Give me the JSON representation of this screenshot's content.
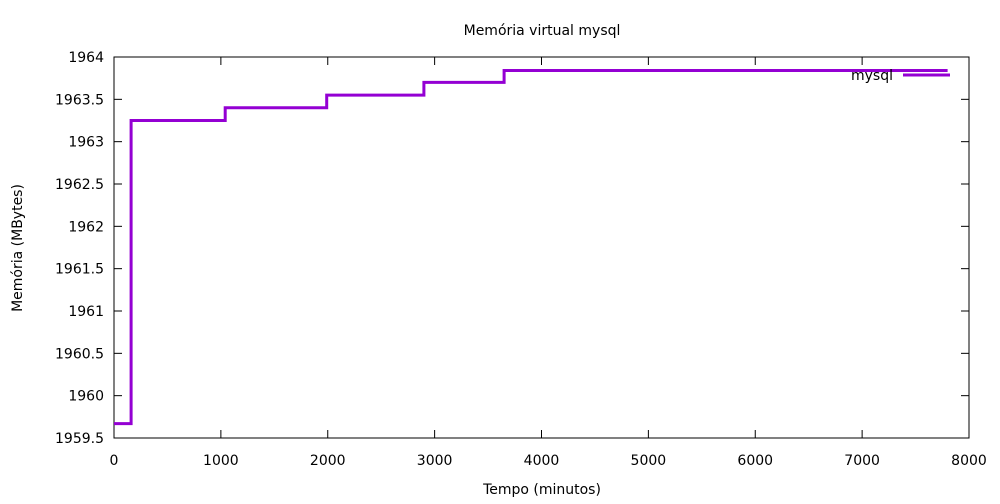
{
  "chart_data": {
    "type": "line",
    "step": true,
    "title": "Memória virtual mysql",
    "xlabel": "Tempo (minutos)",
    "ylabel": "Memória (MBytes)",
    "xlim": [
      0,
      8000
    ],
    "ylim": [
      1959.5,
      1964
    ],
    "x_ticks": [
      0,
      1000,
      2000,
      3000,
      4000,
      5000,
      6000,
      7000,
      8000
    ],
    "y_ticks": [
      1959.5,
      1960,
      1960.5,
      1961,
      1961.5,
      1962,
      1962.5,
      1963,
      1963.5,
      1964
    ],
    "x_tick_labels": [
      "0",
      "1000",
      "2000",
      "3000",
      "4000",
      "5000",
      "6000",
      "7000",
      "8000"
    ],
    "y_tick_labels": [
      "1959.5",
      "1960",
      "1960.5",
      "1961",
      "1961.5",
      "1962",
      "1962.5",
      "1963",
      "1963.5",
      "1964"
    ],
    "grid": false,
    "legend_position": "top-right",
    "series": [
      {
        "name": "mysql",
        "color": "#9400d3",
        "points": [
          [
            0,
            1959.67
          ],
          [
            160,
            1959.67
          ],
          [
            160,
            1963.25
          ],
          [
            1040,
            1963.25
          ],
          [
            1040,
            1963.4
          ],
          [
            1990,
            1963.4
          ],
          [
            1990,
            1963.55
          ],
          [
            2900,
            1963.55
          ],
          [
            2900,
            1963.7
          ],
          [
            3650,
            1963.7
          ],
          [
            3650,
            1963.84
          ],
          [
            7800,
            1963.84
          ]
        ]
      }
    ]
  }
}
